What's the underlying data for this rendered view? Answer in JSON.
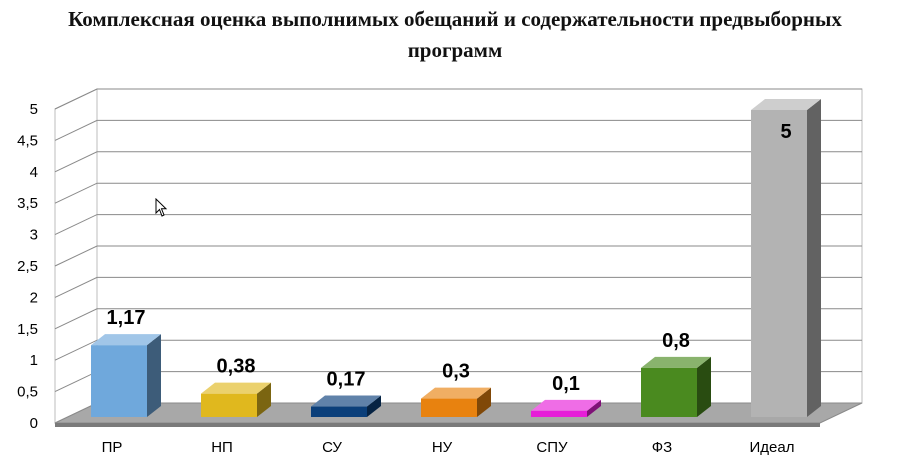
{
  "chart_data": {
    "type": "bar",
    "title_line1": "Комплексная оценка выполнимых обещаний и содержательности предвыборных",
    "title_line2": "программ",
    "categories": [
      "ПР",
      "НП",
      "СУ",
      "НУ",
      "СПУ",
      "ФЗ",
      "Идеал"
    ],
    "values": [
      1.17,
      0.38,
      0.17,
      0.3,
      0.1,
      0.8,
      5
    ],
    "value_labels": [
      "1,17",
      "0,38",
      "0,17",
      "0,3",
      "0,1",
      "0,8",
      "5"
    ],
    "colors": [
      "#6fa8dc",
      "#e0b81e",
      "#0b3f7a",
      "#e8820f",
      "#e61ed8",
      "#4a8a1f",
      "#b3b3b3"
    ],
    "ylim": [
      0,
      5
    ],
    "yticks": [
      0,
      0.5,
      1,
      1.5,
      2,
      2.5,
      3,
      3.5,
      4,
      4.5,
      5
    ],
    "ytick_labels": [
      "0",
      "0,5",
      "1",
      "1,5",
      "2",
      "2,5",
      "3",
      "3,5",
      "4",
      "4,5",
      "5"
    ],
    "grid": true,
    "style": "3d-column"
  }
}
